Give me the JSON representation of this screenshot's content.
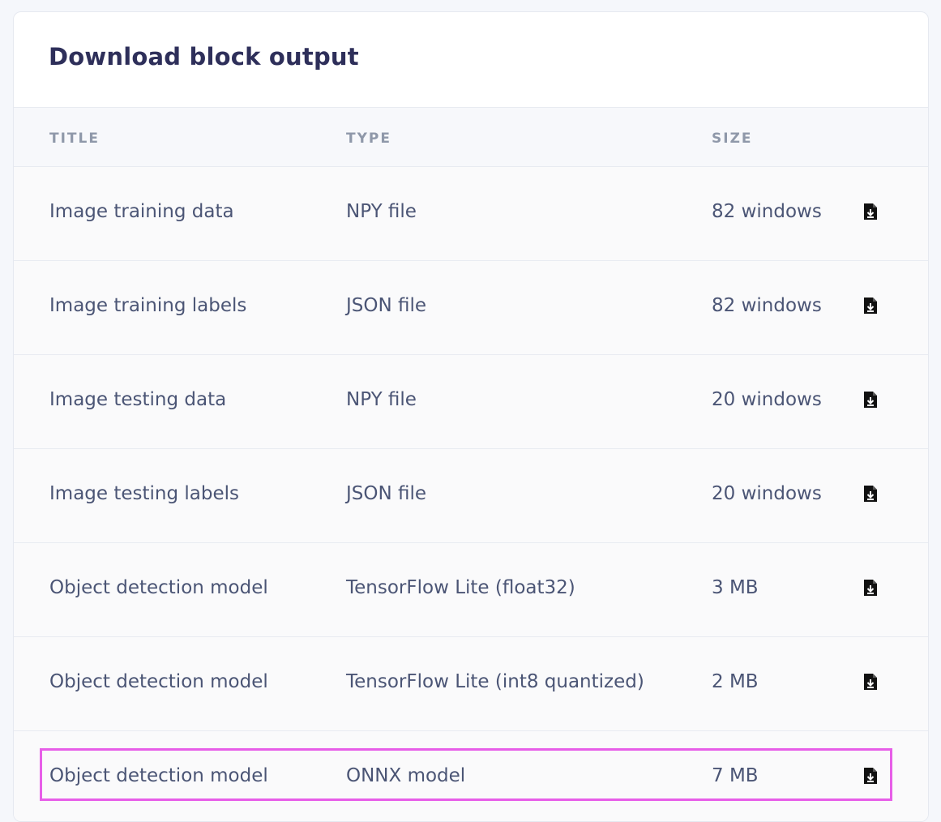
{
  "panel": {
    "title": "Download block output"
  },
  "table": {
    "headers": {
      "title": "TITLE",
      "type": "TYPE",
      "size": "SIZE"
    },
    "rows": [
      {
        "title": "Image training data",
        "type": "NPY file",
        "size": "82 windows"
      },
      {
        "title": "Image training labels",
        "type": "JSON file",
        "size": "82 windows"
      },
      {
        "title": "Image testing data",
        "type": "NPY file",
        "size": "20 windows"
      },
      {
        "title": "Image testing labels",
        "type": "JSON file",
        "size": "20 windows"
      },
      {
        "title": "Object detection model",
        "type": "TensorFlow Lite (float32)",
        "size": "3 MB"
      },
      {
        "title": "Object detection model",
        "type": "TensorFlow Lite (int8 quantized)",
        "size": "2 MB"
      },
      {
        "title": "Object detection model",
        "type": "ONNX model",
        "size": "7 MB"
      }
    ],
    "row_action_icon": "file-download-icon"
  },
  "colors": {
    "title": "#2e2f5a",
    "text": "#4b5575",
    "header_text": "#8f98a9",
    "highlight": "#e75ee8"
  }
}
